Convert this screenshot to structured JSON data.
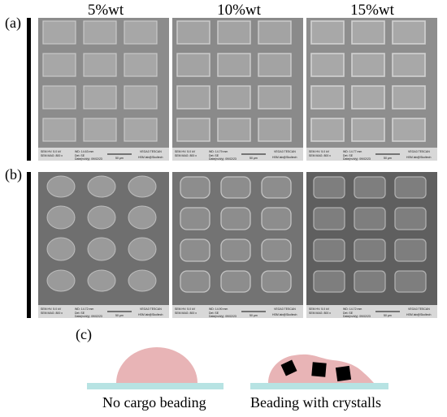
{
  "columns": [
    "5%wt",
    "10%wt",
    "15%wt"
  ],
  "panel_labels": {
    "a": "(a)",
    "b": "(b)",
    "c": "(c)"
  },
  "sem_meta": {
    "row_a": [
      {
        "line1": "SEM HV: 5.0 kV",
        "line2": "SEM MAG: 800 x",
        "wd": "WD: 14.63 mm",
        "det": "Det: SE",
        "date": "Date(m/d/y): 09/02/23",
        "scale": "50 μm",
        "brand": "VEGA3 TESCAN",
        "lab": "HSM lab@Skoltech"
      },
      {
        "line1": "SEM HV: 5.0 kV",
        "line2": "SEM MAG: 800 x",
        "wd": "WD: 14.79 mm",
        "det": "Det: SE",
        "date": "Date(m/d/y): 09/02/23",
        "scale": "50 μm",
        "brand": "VEGA3 TESCAN",
        "lab": "HSM lab@Skoltech"
      },
      {
        "line1": "SEM HV: 5.0 kV",
        "line2": "SEM MAG: 800 x",
        "wd": "WD: 14.77 mm",
        "det": "Det: SE",
        "date": "Date(m/d/y): 09/02/23",
        "scale": "50 μm",
        "brand": "VEGA3 TESCAN",
        "lab": "HSM lab@Skoltech"
      }
    ],
    "row_b": [
      {
        "line1": "SEM HV: 5.0 kV",
        "line2": "SEM MAG: 800 x",
        "wd": "WD: 14.72 mm",
        "det": "Det: SE",
        "date": "Date(m/d/y): 09/02/23",
        "scale": "50 μm",
        "brand": "VEGA3 TESCAN",
        "lab": "HSM lab@Skoltech"
      },
      {
        "line1": "SEM HV: 5.0 kV",
        "line2": "SEM MAG: 800 x",
        "wd": "WD: 14.90 mm",
        "det": "Det: SE",
        "date": "Date(m/d/y): 09/02/23",
        "scale": "50 μm",
        "brand": "VEGA3 TESCAN",
        "lab": "HSM lab@Skoltech"
      },
      {
        "line1": "SEM HV: 5.0 kV",
        "line2": "SEM MAG: 800 x",
        "wd": "WD: 14.72 mm",
        "det": "Det: SE",
        "date": "Date(m/d/y): 09/02/23",
        "scale": "50 μm",
        "brand": "VEGA3 TESCAN",
        "lab": "HSM lab@Skoltech"
      }
    ]
  },
  "scheme": {
    "left_caption": "No cargo beading",
    "right_caption": "Beading with crystalls",
    "substrate_color": "#b7e3e3",
    "droplet_color": "#e8b4b6",
    "crystal_color": "#000000"
  }
}
